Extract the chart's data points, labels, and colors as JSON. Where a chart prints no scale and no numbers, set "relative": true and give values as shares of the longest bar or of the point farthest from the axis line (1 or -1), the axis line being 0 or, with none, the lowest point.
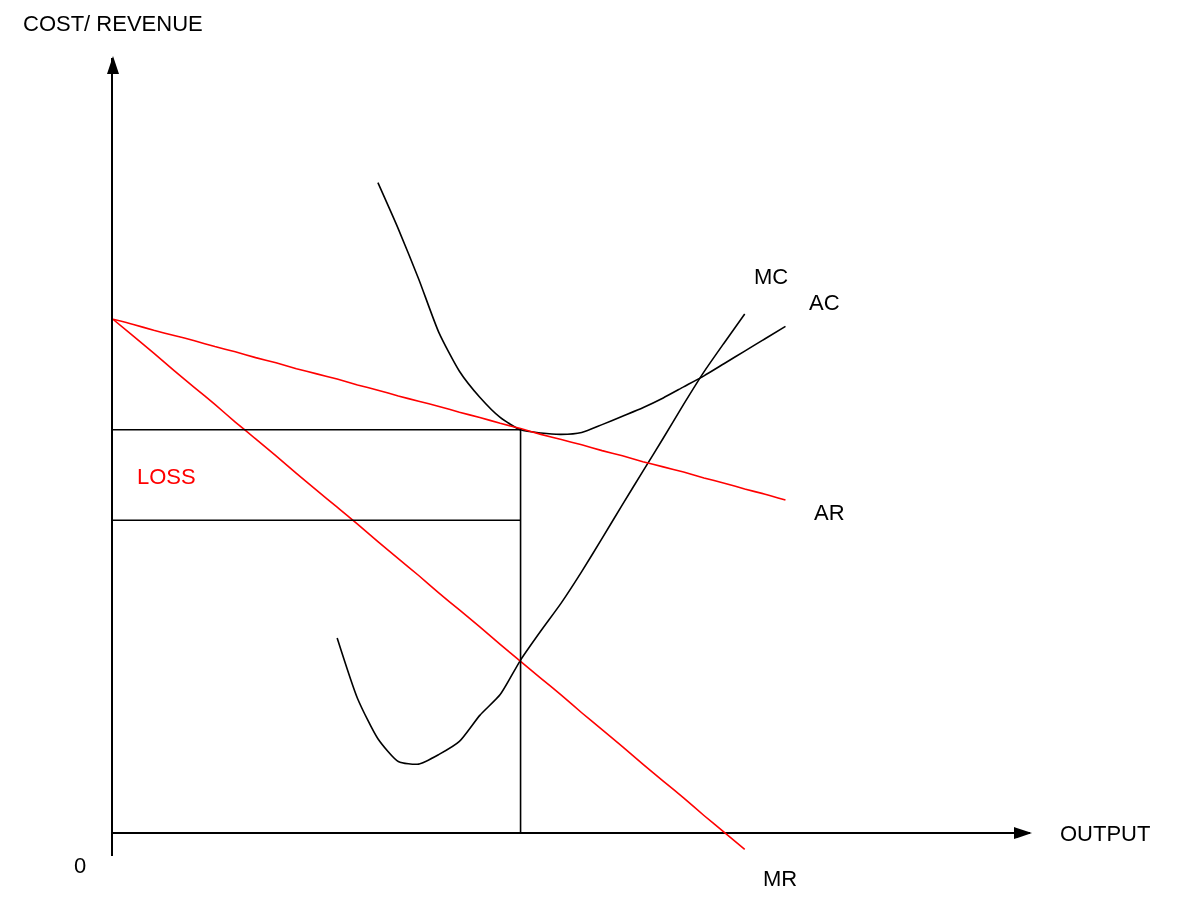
{
  "chart_data": {
    "type": "line",
    "relative": true,
    "xlabel": "OUTPUT",
    "categories": [
      null,
      null,
      null,
      null,
      null,
      null,
      null,
      null,
      null,
      null,
      null,
      null,
      null,
      null,
      null,
      null,
      null,
      null,
      null,
      null,
      null,
      null,
      null,
      null,
      null,
      null,
      null,
      null,
      null,
      null,
      null,
      null,
      null,
      null,
      null,
      null,
      null,
      null,
      null,
      null,
      null,
      null,
      null,
      null,
      null,
      null
    ],
    "series": [
      {
        "name": "MC",
        "color": "#000000",
        "values": [
          null,
          null,
          null,
          null,
          null,
          null,
          null,
          null,
          null,
          null,
          null,
          0.3,
          0.207,
          0.145,
          0.11,
          0.106,
          0.121,
          0.141,
          0.181,
          0.213,
          0.266,
          0.311,
          0.354,
          0.402,
          0.453,
          0.505,
          0.556,
          0.607,
          0.659,
          0.709,
          0.754,
          0.798,
          null,
          null,
          null,
          null,
          null,
          null,
          null,
          null,
          null,
          null,
          null,
          null,
          null,
          null
        ]
      },
      {
        "name": "AC",
        "color": "#000000",
        "values": [
          null,
          null,
          null,
          null,
          null,
          null,
          null,
          null,
          null,
          null,
          null,
          null,
          null,
          1.0,
          0.929,
          0.852,
          0.769,
          0.71,
          0.67,
          0.639,
          0.62,
          0.615,
          0.613,
          0.616,
          0.628,
          0.641,
          0.654,
          0.669,
          0.686,
          0.703,
          0.722,
          0.741,
          0.76,
          0.779,
          null,
          null,
          null,
          null,
          null,
          null,
          null,
          null,
          null,
          null,
          null,
          null
        ]
      },
      {
        "name": "AR",
        "color": "#ff0000",
        "values": [
          0.79,
          0.782,
          0.773,
          0.765,
          0.757,
          0.748,
          0.74,
          0.731,
          0.723,
          0.714,
          0.706,
          0.698,
          0.689,
          0.681,
          0.672,
          0.664,
          0.656,
          0.647,
          0.639,
          0.63,
          0.622,
          0.613,
          0.605,
          0.597,
          0.588,
          0.58,
          0.571,
          0.563,
          0.555,
          0.546,
          0.538,
          0.529,
          0.521,
          0.512,
          null,
          null,
          null,
          null,
          null,
          null,
          null,
          null,
          null,
          null,
          null,
          null
        ]
      },
      {
        "name": "MR",
        "color": "#ff0000",
        "values": [
          0.79,
          0.764,
          0.738,
          0.711,
          0.685,
          0.659,
          0.632,
          0.606,
          0.58,
          0.553,
          0.527,
          0.501,
          0.475,
          0.448,
          0.422,
          0.396,
          0.369,
          0.343,
          0.317,
          0.29,
          0.264,
          0.238,
          0.212,
          0.185,
          0.159,
          0.133,
          0.106,
          0.08,
          0.054,
          0.027,
          0.001,
          -0.025,
          null,
          null,
          null,
          null,
          null,
          null,
          null,
          null,
          null,
          null,
          null,
          null,
          null,
          null
        ]
      },
      {
        "type": "step",
        "color": "#000000",
        "values": [
          0.62,
          0.62,
          0.62,
          0.62,
          0.62,
          0.62,
          0.62,
          0.62,
          0.62,
          0.62,
          0.62,
          0.62,
          0.62,
          0.62,
          0.62,
          0.62,
          0.62,
          0.62,
          0.62,
          0.62,
          0.62,
          0,
          null,
          null,
          null,
          null,
          null,
          null,
          null,
          null,
          null,
          null,
          null,
          null,
          null,
          null,
          null,
          null,
          null,
          null,
          null,
          null,
          null,
          null,
          null,
          null
        ]
      },
      {
        "color": "#000000",
        "values": [
          0.481,
          0.481,
          0.481,
          0.481,
          0.481,
          0.481,
          0.481,
          0.481,
          0.481,
          0.481,
          0.481,
          0.481,
          0.481,
          0.481,
          0.481,
          0.481,
          0.481,
          0.481,
          0.481,
          0.481,
          0.481,
          null,
          null,
          null,
          null,
          null,
          null,
          null,
          null,
          null,
          null,
          null,
          null,
          null,
          null,
          null,
          null,
          null,
          null,
          null,
          null,
          null,
          null,
          null,
          null,
          null
        ]
      }
    ],
    "annotations": [
      "COST/ REVENUE",
      "LOSS",
      "0"
    ]
  }
}
